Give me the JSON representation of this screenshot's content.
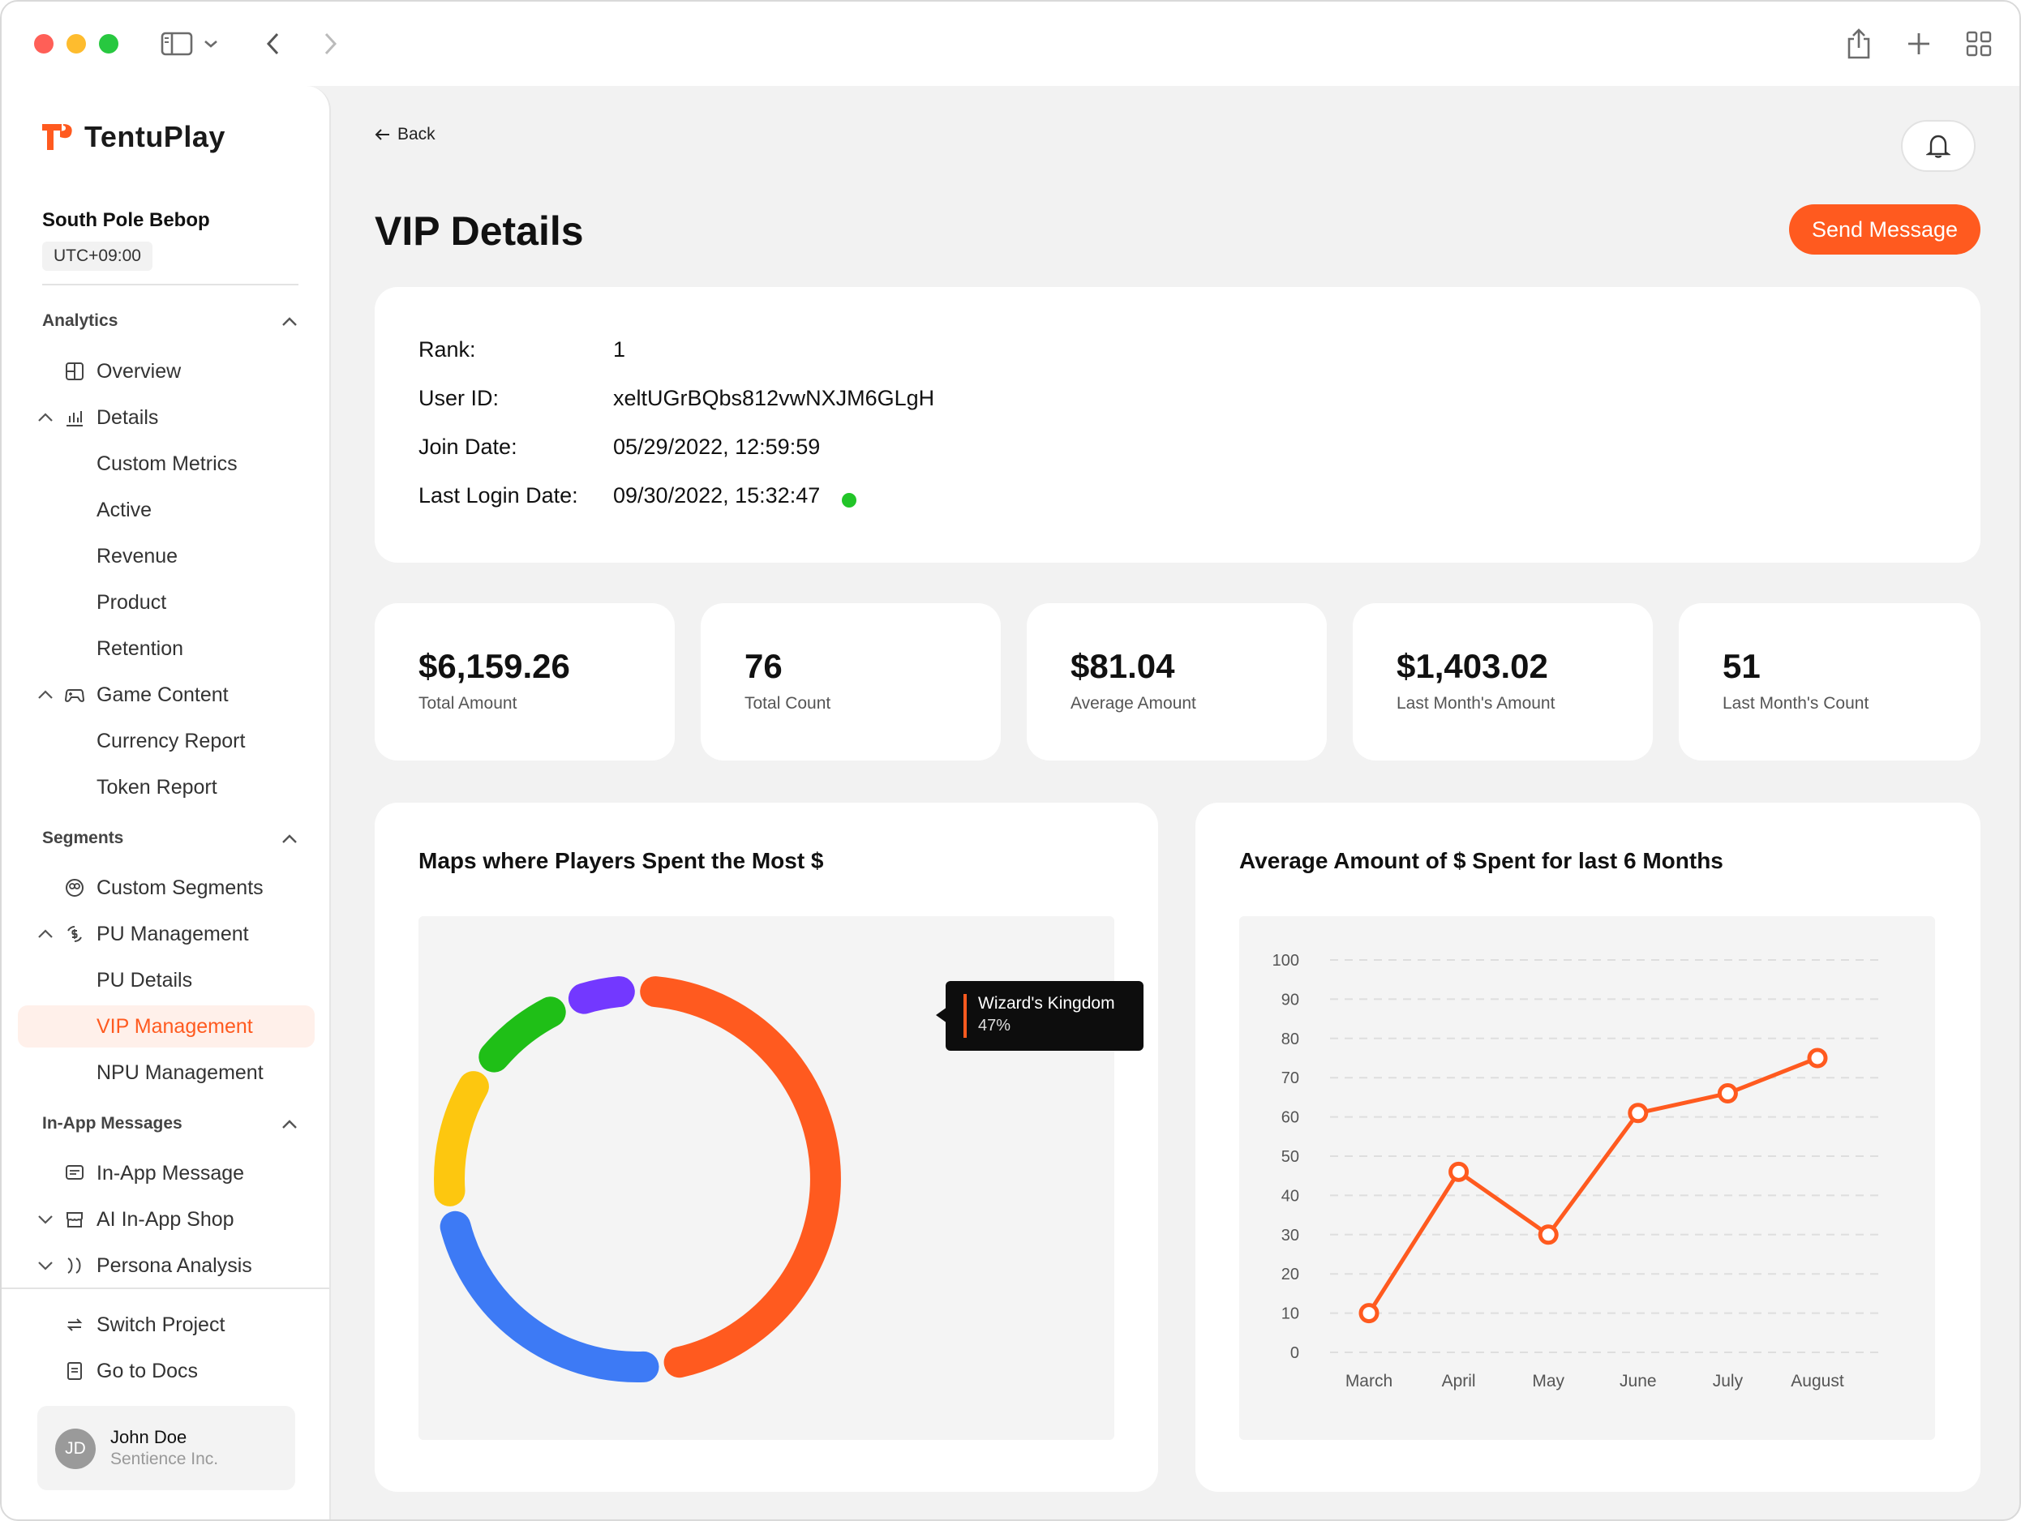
{
  "colors": {
    "accent": "#ff5a1f",
    "online": "#22c528",
    "donut_orange": "#ff5a1f",
    "donut_blue": "#3d7af5",
    "donut_yellow": "#fdc70f",
    "donut_green": "#1fbf17",
    "donut_purple": "#7338ff"
  },
  "brand": {
    "name": "TentuPlay"
  },
  "project": {
    "name": "South Pole Bebop",
    "timezone": "UTC+09:00"
  },
  "nav": {
    "analytics_header": "Analytics",
    "overview": "Overview",
    "details": "Details",
    "custom_metrics": "Custom Metrics",
    "active": "Active",
    "revenue": "Revenue",
    "product": "Product",
    "retention": "Retention",
    "game_content": "Game Content",
    "currency_report": "Currency Report",
    "token_report": "Token Report",
    "segments_header": "Segments",
    "custom_segments": "Custom Segments",
    "pu_management": "PU Management",
    "pu_details": "PU Details",
    "vip_management": "VIP Management",
    "npu_management": "NPU Management",
    "inapp_header": "In-App Messages",
    "inapp_message": "In-App Message",
    "ai_inapp_shop": "AI In-App Shop",
    "persona_analysis": "Persona Analysis",
    "switch_project": "Switch Project",
    "go_to_docs": "Go to Docs"
  },
  "user": {
    "initials": "JD",
    "name": "John Doe",
    "org": "Sentience Inc."
  },
  "header": {
    "back_label": "Back",
    "title": "VIP Details",
    "send_message_label": "Send Message"
  },
  "info": {
    "rank_label": "Rank:",
    "rank": "1",
    "user_id_label": "User ID:",
    "user_id": "xeltUGrBQbs812vwNXJM6GLgH",
    "join_date_label": "Join Date:",
    "join_date": "05/29/2022, 12:59:59",
    "last_login_label": "Last Login Date:",
    "last_login": "09/30/2022, 15:32:47"
  },
  "stats": [
    {
      "value": "$6,159.26",
      "label": "Total Amount"
    },
    {
      "value": "76",
      "label": "Total Count"
    },
    {
      "value": "$81.04",
      "label": "Average Amount"
    },
    {
      "value": "$1,403.02",
      "label": "Last Month's Amount"
    },
    {
      "value": "51",
      "label": "Last Month's Count"
    }
  ],
  "donut": {
    "title": "Maps where Players Spent the Most $",
    "tooltip": {
      "name": "Wizard's Kingdom",
      "value": "47%"
    }
  },
  "chart_data": [
    {
      "type": "pie",
      "title": "Maps where Players Spent the Most $",
      "slices": [
        {
          "name": "Wizard's Kingdom",
          "value": 47
        },
        {
          "value": 24
        },
        {
          "value": 12
        },
        {
          "value": 9
        },
        {
          "value": 6
        }
      ]
    },
    {
      "type": "line",
      "title": "Average Amount of $ Spent for last 6 Months",
      "categories": [
        "March",
        "April",
        "May",
        "June",
        "July",
        "August"
      ],
      "values": [
        10,
        46,
        30,
        61,
        66,
        75
      ],
      "yticks": [
        "0",
        "10",
        "20",
        "30",
        "40",
        "50",
        "60",
        "70",
        "80",
        "90",
        "100"
      ],
      "ylim": [
        0,
        100
      ],
      "grid": true
    }
  ]
}
